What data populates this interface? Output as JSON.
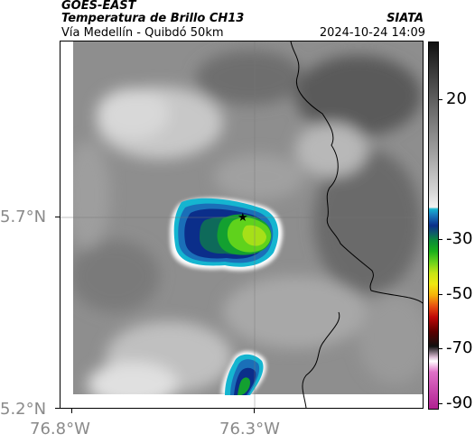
{
  "header": {
    "satellite": "GOES-EAST",
    "product": "Temperatura de Brillo CH13",
    "region": "Vía Medellín - Quibdó 50km",
    "org": "SIATA",
    "timestamp": "2024-10-24 14:09"
  },
  "axes": {
    "lat_ticks": [
      "5.7°N",
      "5.2°N"
    ],
    "lon_ticks": [
      "76.8°W",
      "76.3°W"
    ]
  },
  "colorbar": {
    "labels": [
      "20",
      "-30",
      "-50",
      "-70",
      "-90"
    ]
  },
  "colors": {
    "cold_blue": "#0b2e8a",
    "cyan_edge": "#15b5d0",
    "core_green": "#6ad21a",
    "background_gray": "#8c8c8c"
  }
}
